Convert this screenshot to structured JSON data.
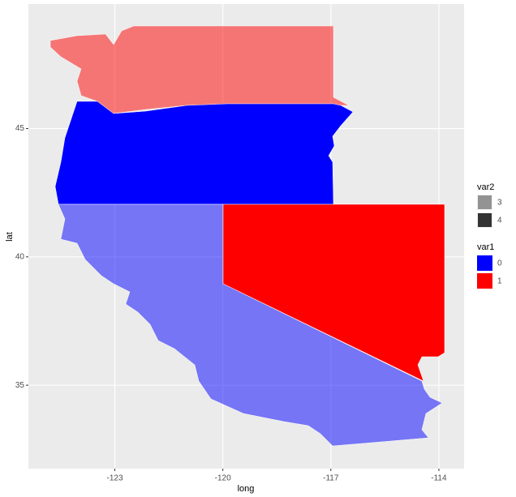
{
  "chart_data": {
    "type": "map",
    "x_label": "long",
    "y_label": "lat",
    "xlim": [
      -125.4,
      -113.3
    ],
    "xticks": [
      -123,
      -120,
      -117,
      -114
    ],
    "ylim": [
      31.75,
      49.85
    ],
    "yticks": [
      35,
      40,
      45
    ],
    "grid": true,
    "regions": [
      {
        "var1": 1,
        "var2": 3
      },
      {
        "var1": 0,
        "var2": 4
      },
      {
        "var1": 0,
        "var2": 3
      },
      {
        "var1": 1,
        "var2": 4
      }
    ],
    "legends": [
      {
        "title": "var2",
        "labels": [
          "3",
          "4"
        ],
        "alpha": [
          0.5,
          1
        ],
        "color": "#333333"
      },
      {
        "title": "var1",
        "labels": [
          "0",
          "1"
        ],
        "colors": [
          "#0000ff",
          "#ff0000"
        ]
      }
    ],
    "legend_position": "right"
  }
}
